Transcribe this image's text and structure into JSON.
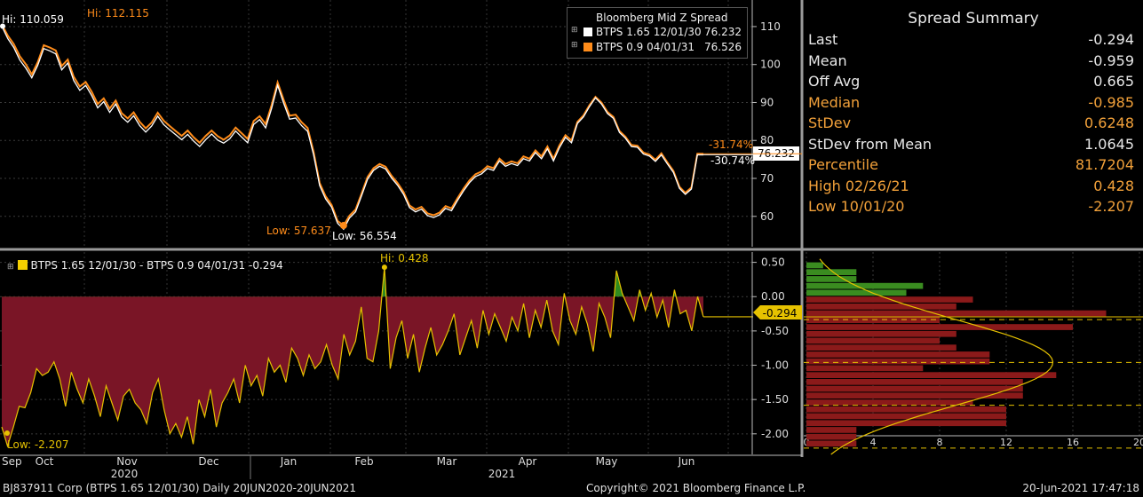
{
  "chart_data": [
    {
      "type": "line",
      "title": "Bloomberg Mid Z Spread",
      "ylim": [
        52,
        117
      ],
      "yticks": [
        60,
        70,
        80,
        90,
        100,
        110
      ],
      "series": [
        {
          "name": "BTPS 1.65 12/01/30",
          "last": "76.232",
          "color": "#ffffff",
          "values": [
            110.1,
            106.8,
            104.5,
            101.2,
            99.1,
            96.5,
            99.8,
            104.2,
            103.6,
            102.8,
            98.6,
            100.4,
            95.8,
            93.2,
            94.5,
            91.8,
            88.6,
            90.2,
            87.4,
            89.6,
            86.2,
            84.8,
            86.5,
            83.9,
            82.2,
            83.8,
            86.4,
            84.2,
            82.8,
            81.5,
            80.2,
            81.6,
            79.8,
            78.4,
            80.2,
            81.7,
            80.1,
            79.3,
            80.4,
            82.5,
            80.9,
            79.4,
            84.2,
            85.5,
            83.3,
            88.4,
            94.5,
            89.8,
            85.6,
            85.9,
            83.9,
            82.4,
            76.2,
            68.1,
            64.6,
            62.4,
            58.2,
            56.6,
            59.6,
            61.2,
            65.4,
            69.8,
            72.1,
            73.2,
            72.5,
            70.1,
            68.2,
            65.8,
            62.3,
            61.2,
            61.9,
            60.2,
            59.7,
            60.4,
            62.1,
            61.5,
            64.2,
            66.7,
            68.9,
            70.5,
            71.2,
            72.6,
            72.1,
            74.6,
            73.2,
            73.9,
            73.4,
            75.2,
            74.6,
            76.8,
            75.2,
            77.8,
            74.6,
            78.1,
            80.8,
            79.4,
            84.5,
            86.2,
            88.9,
            91.2,
            89.6,
            87.1,
            85.8,
            82.1,
            80.6,
            78.4,
            78.2,
            76.4,
            75.9,
            74.5,
            76.2,
            73.8,
            71.6,
            67.4,
            65.8,
            67.2,
            76.2,
            76.2
          ]
        },
        {
          "name": "BTPS 0.9 04/01/31",
          "last": "76.526",
          "color": "#ff8c1a",
          "values": [
            110.6,
            107.6,
            105.4,
            102.2,
            100.1,
            97.4,
            100.6,
            105.1,
            104.5,
            103.7,
            99.6,
            101.3,
            96.8,
            94.2,
            95.4,
            92.8,
            89.6,
            91.1,
            88.4,
            90.5,
            87.2,
            85.8,
            87.4,
            84.9,
            83.2,
            84.7,
            87.3,
            85.2,
            83.8,
            82.5,
            81.2,
            82.6,
            80.8,
            79.4,
            81.2,
            82.6,
            81.1,
            80.2,
            81.3,
            83.4,
            81.9,
            80.4,
            85.1,
            86.4,
            84.3,
            89.3,
            95.3,
            90.7,
            86.5,
            86.8,
            84.8,
            83.3,
            77.0,
            68.8,
            65.3,
            63.0,
            58.8,
            57.6,
            60.2,
            61.8,
            66.0,
            70.4,
            72.7,
            73.8,
            73.1,
            70.7,
            68.8,
            66.4,
            62.9,
            61.8,
            62.5,
            60.8,
            60.3,
            61.0,
            62.7,
            62.1,
            64.8,
            67.3,
            69.5,
            71.1,
            71.8,
            73.2,
            72.7,
            75.2,
            73.8,
            74.5,
            74.0,
            75.8,
            75.2,
            77.4,
            75.8,
            78.4,
            75.2,
            78.7,
            81.4,
            80.0,
            84.9,
            86.6,
            89.3,
            91.5,
            90.0,
            87.5,
            86.2,
            82.5,
            81.0,
            78.8,
            78.6,
            76.8,
            76.3,
            74.9,
            76.6,
            74.2,
            72.0,
            67.8,
            66.2,
            67.6,
            76.5,
            76.5
          ]
        }
      ],
      "annotations": {
        "hi_white": "Hi: 110.059",
        "hi_orange": "Hi: 112.115",
        "low_orange": "Low: 57.637",
        "low_white": "Low: 56.554",
        "pct_orange": "-31.74%",
        "pct_white": "-30.74%",
        "last_tag": "76.232"
      }
    },
    {
      "type": "area",
      "series": [
        {
          "name": "BTPS 1.65 12/01/30 - BTPS 0.9 04/01/31",
          "last": "-0.294",
          "color": "#f5d000",
          "values": [
            -1.9,
            -2.18,
            -1.9,
            -1.6,
            -1.62,
            -1.4,
            -1.05,
            -1.15,
            -1.1,
            -0.95,
            -1.2,
            -1.6,
            -1.1,
            -1.35,
            -1.55,
            -1.2,
            -1.45,
            -1.75,
            -1.3,
            -1.55,
            -1.8,
            -1.45,
            -1.35,
            -1.55,
            -1.65,
            -1.85,
            -1.4,
            -1.2,
            -1.65,
            -2.0,
            -1.85,
            -2.05,
            -1.75,
            -2.15,
            -1.5,
            -1.75,
            -1.35,
            -1.9,
            -1.55,
            -1.4,
            -1.2,
            -1.55,
            -1.0,
            -1.3,
            -1.15,
            -1.45,
            -0.9,
            -1.1,
            -1.0,
            -1.25,
            -0.75,
            -0.9,
            -1.15,
            -0.85,
            -1.05,
            -0.95,
            -0.7,
            -1.0,
            -1.2,
            -0.55,
            -0.85,
            -0.65,
            -0.15,
            -0.9,
            -0.95,
            -0.5,
            0.43,
            -1.05,
            -0.6,
            -0.35,
            -0.9,
            -0.55,
            -1.1,
            -0.75,
            -0.45,
            -0.85,
            -0.7,
            -0.5,
            -0.25,
            -0.85,
            -0.6,
            -0.35,
            -0.75,
            -0.2,
            -0.55,
            -0.25,
            -0.45,
            -0.65,
            -0.3,
            -0.5,
            -0.1,
            -0.6,
            -0.2,
            -0.45,
            -0.05,
            -0.5,
            -0.7,
            0.05,
            -0.35,
            -0.55,
            -0.15,
            -0.4,
            -0.8,
            -0.1,
            -0.3,
            -0.6,
            0.38,
            0.05,
            -0.15,
            -0.35,
            0.1,
            -0.2,
            0.05,
            -0.3,
            -0.05,
            -0.45,
            0.1,
            -0.25,
            -0.2,
            -0.5,
            0.0,
            -0.294
          ]
        }
      ],
      "ylim": [
        -2.3,
        0.65
      ],
      "yticks": [
        0.5,
        0.0,
        -0.5,
        -1.0,
        -1.5,
        -2.0
      ],
      "ytick_labels": [
        "0.50",
        "0.00",
        "-0.50",
        "-1.00",
        "-1.50",
        "-2.00"
      ],
      "annotations": {
        "hi": "Hi: 0.428",
        "low": "Low: -2.207",
        "last_tag": "-0.294"
      }
    },
    {
      "type": "bar",
      "orientation": "horizontal",
      "xlim": [
        0,
        20
      ],
      "xticks": [
        0,
        4,
        8,
        12,
        16,
        20
      ],
      "bins": [
        0.45,
        0.35,
        0.25,
        0.15,
        0.05,
        -0.05,
        -0.15,
        -0.25,
        -0.35,
        -0.45,
        -0.55,
        -0.65,
        -0.75,
        -0.85,
        -0.95,
        -1.05,
        -1.15,
        -1.25,
        -1.35,
        -1.45,
        -1.55,
        -1.65,
        -1.75,
        -1.85,
        -1.95,
        -2.05,
        -2.15
      ],
      "counts": [
        1,
        3,
        3,
        7,
        6,
        10,
        9,
        18,
        8,
        16,
        9,
        8,
        9,
        11,
        11,
        7,
        15,
        13,
        13,
        13,
        10,
        12,
        12,
        12,
        3,
        3,
        3
      ],
      "positive_color": "#3a8c20",
      "negative_color": "#8b1a1a"
    }
  ],
  "x_axis": {
    "months": [
      "Sep",
      "Oct",
      "Nov",
      "Dec",
      "Jan",
      "Feb",
      "Mar",
      "Apr",
      "May",
      "Jun"
    ],
    "years": [
      "2020",
      "2021"
    ]
  },
  "summary": {
    "title": "Spread Summary",
    "rows": [
      {
        "label": "Last",
        "value": "-0.294",
        "style": "w"
      },
      {
        "label": "Mean",
        "value": "-0.959",
        "style": "w"
      },
      {
        "label": "Off Avg",
        "value": "0.665",
        "style": "w"
      },
      {
        "label": "Median",
        "value": "-0.985",
        "style": "o"
      },
      {
        "label": "StDev",
        "value": "0.6248",
        "style": "o"
      },
      {
        "label": "StDev from Mean",
        "value": "1.0645",
        "style": "w"
      },
      {
        "label": "Percentile",
        "value": "81.7204",
        "style": "o"
      },
      {
        "label": "High 02/26/21",
        "value": "0.428",
        "style": "o"
      },
      {
        "label": "Low 10/01/20",
        "value": "-2.207",
        "style": "o"
      }
    ]
  },
  "footer": {
    "left": "BJ837911 Corp (BTPS 1.65 12/01/30)  Daily 20JUN2020-20JUN2021",
    "center": "Copyright© 2021 Bloomberg Finance L.P.",
    "right": "20-Jun-2021 17:47:18"
  }
}
